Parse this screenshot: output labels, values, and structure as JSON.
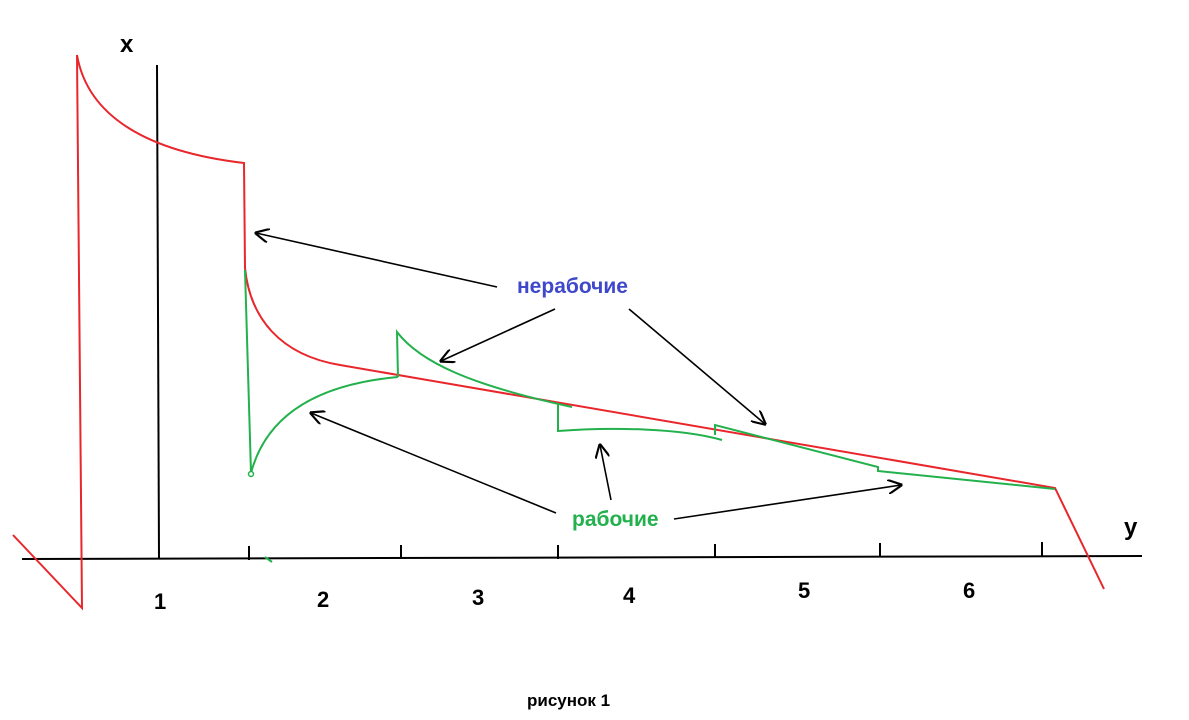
{
  "axes": {
    "x_label": "x",
    "y_label": "y"
  },
  "sections": [
    "1",
    "2",
    "3",
    "4",
    "5",
    "6"
  ],
  "annotations": {
    "nonworking": "нерабочие",
    "working": "рабочие"
  },
  "caption": "рисунок 1",
  "colors": {
    "axis": "#000000",
    "red_curve": "#e8262b",
    "green_curve": "#22b14c",
    "nonworking_text": "#3f48cc",
    "working_text": "#22b14c",
    "arrow": "#000000"
  }
}
